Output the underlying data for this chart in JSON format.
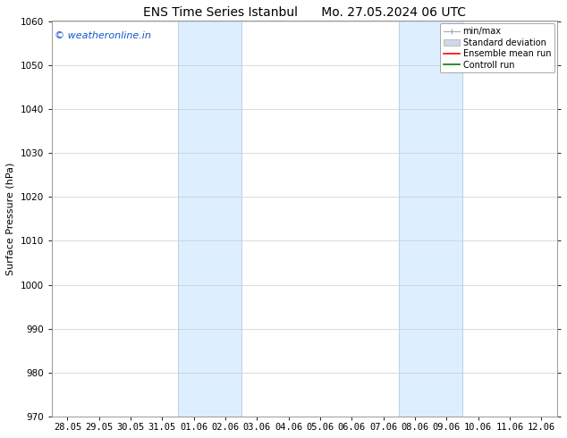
{
  "title_left": "ENS Time Series Istanbul",
  "title_right": "Mo. 27.05.2024 06 UTC",
  "ylabel": "Surface Pressure (hPa)",
  "ylim": [
    970,
    1060
  ],
  "yticks": [
    970,
    980,
    990,
    1000,
    1010,
    1020,
    1030,
    1040,
    1050,
    1060
  ],
  "xtick_labels": [
    "28.05",
    "29.05",
    "30.05",
    "31.05",
    "01.06",
    "02.06",
    "03.06",
    "04.06",
    "05.06",
    "06.06",
    "07.06",
    "08.06",
    "09.06",
    "10.06",
    "11.06",
    "12.06"
  ],
  "shaded_bands": [
    {
      "x_start": "01.06",
      "x_end": "03.06"
    },
    {
      "x_start": "08.06",
      "x_end": "10.06"
    }
  ],
  "band_color": "#ddeeff",
  "band_edge_color": "#b8d0e8",
  "watermark_text": "© weatheronline.in",
  "watermark_color": "#1155cc",
  "legend_items": [
    {
      "label": "min/max",
      "color": "#aaaaaa",
      "type": "minmax"
    },
    {
      "label": "Standard deviation",
      "color": "#ccd9e8",
      "type": "patch"
    },
    {
      "label": "Ensemble mean run",
      "color": "red",
      "type": "line"
    },
    {
      "label": "Controll run",
      "color": "green",
      "type": "line"
    }
  ],
  "background_color": "#ffffff",
  "grid_color": "#cccccc",
  "title_fontsize": 10,
  "label_fontsize": 8,
  "tick_fontsize": 7.5,
  "watermark_fontsize": 8,
  "legend_fontsize": 7
}
